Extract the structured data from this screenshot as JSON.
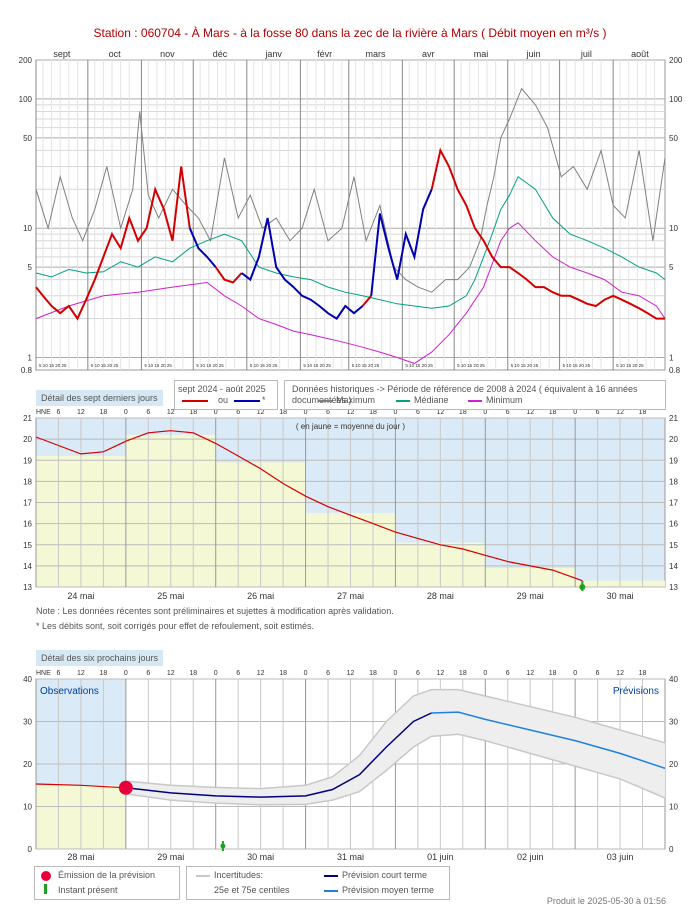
{
  "title": "Station : 060704      -  À Mars - à la fosse 80 dans la zec de la rivière à Mars   ( Débit moyen en m³/s )",
  "colors": {
    "observed_corrected": "#d40000",
    "observed_estimated": "#0000b0",
    "maximum": "#808080",
    "median": "#00a080",
    "minimum": "#d020d0",
    "daily_mean_fill": "#f4f8d4",
    "panel_bg": "#dbeaf7",
    "short_forecast": "#000080",
    "medium_forecast": "#2080e0",
    "uncertainty": "#c8c8c8"
  },
  "annual": {
    "panel_label": "",
    "legend_period": "sept 2024 - août 2025",
    "legend_or": "ou",
    "legend_star": "*",
    "legend_hist": "Données historiques -> Période de référence  de 2008 à 2024   ( équivalent à 16 années documentées )",
    "legend_max": "Maximum",
    "legend_median": "Médiane",
    "legend_min": "Minimum"
  },
  "week": {
    "panel_label": "Détail des sept derniers jours",
    "yaxis_label": "HNE",
    "mean_note": "( en jaune = moyenne du jour )"
  },
  "notes": {
    "line1": "Note : Les données récentes sont préliminaires et sujettes à modification après validation.",
    "line2": "* Les débits sont, soit corrigés pour effet de refoulement, soit estimés."
  },
  "forecast": {
    "panel_label": "Détail des six prochains jours",
    "yaxis_label": "HNE",
    "observations_label": "Observations",
    "previsions_label": "Prévisions",
    "legend_emission": "Émission de la prévision",
    "legend_instant": "Instant présent",
    "legend_uncert_1": "Incertitudes:",
    "legend_uncert_2": "25e et 75e centiles",
    "legend_short": "Prévision court terme",
    "legend_medium": "Prévision moyen terme"
  },
  "footer": "Produit le 2025-05-30 à 01:56",
  "chart_data": [
    {
      "type": "line",
      "title": "Station : 060704      -  À Mars - à la fosse 80 dans la zec de la rivière à Mars   ( Débit moyen en m³/s )",
      "yscale": "log",
      "ylim": [
        0.8,
        200
      ],
      "yticks": [
        0.8,
        1,
        5,
        10,
        50,
        100,
        200
      ],
      "months": [
        "sept",
        "oct",
        "nov",
        "déc",
        "janv",
        "févr",
        "mars",
        "avr",
        "mai",
        "juin",
        "juil",
        "août"
      ],
      "day_ticks": "5 10 15 20 25",
      "x_unit": "day of hydrological year (1 = 1 sept)",
      "series": [
        {
          "name": "Maximum",
          "x": [
            1,
            8,
            15,
            22,
            28,
            35,
            42,
            50,
            57,
            61,
            66,
            72,
            80,
            88,
            95,
            102,
            110,
            118,
            125,
            132,
            140,
            148,
            155,
            162,
            170,
            178,
            185,
            192,
            200,
            208,
            215,
            222,
            230,
            238,
            245,
            252,
            258,
            262,
            266,
            270,
            275,
            282,
            290,
            297,
            305,
            312,
            320,
            328,
            335,
            342,
            350,
            358,
            365
          ],
          "y": [
            20,
            10,
            25,
            12,
            8,
            14,
            30,
            10,
            20,
            80,
            18,
            12,
            20,
            15,
            12,
            8,
            35,
            12,
            18,
            10,
            12,
            8,
            10,
            20,
            8,
            10,
            25,
            8,
            15,
            5,
            4,
            3.5,
            3.2,
            4,
            4,
            5,
            8,
            15,
            25,
            50,
            70,
            120,
            90,
            60,
            25,
            30,
            20,
            40,
            15,
            12,
            40,
            8,
            35
          ]
        },
        {
          "name": "Médiane",
          "x": [
            1,
            10,
            20,
            30,
            40,
            50,
            60,
            70,
            80,
            90,
            100,
            110,
            120,
            130,
            140,
            150,
            160,
            170,
            180,
            190,
            200,
            210,
            220,
            230,
            240,
            250,
            255,
            260,
            265,
            270,
            275,
            280,
            290,
            300,
            310,
            320,
            330,
            340,
            350,
            360,
            365
          ],
          "y": [
            4.5,
            4.2,
            4.8,
            4.5,
            4.6,
            5.5,
            5,
            6,
            5.5,
            7,
            8,
            9,
            8,
            5,
            4.5,
            4.2,
            4,
            3.5,
            3.2,
            3,
            2.8,
            2.6,
            2.5,
            2.4,
            2.5,
            3,
            4,
            6,
            9,
            14,
            18,
            25,
            20,
            12,
            9,
            8,
            7,
            6,
            5,
            4.5,
            4
          ]
        },
        {
          "name": "Minimum",
          "x": [
            1,
            20,
            40,
            60,
            80,
            100,
            110,
            120,
            130,
            140,
            150,
            160,
            170,
            180,
            190,
            200,
            210,
            220,
            230,
            240,
            250,
            260,
            270,
            275,
            280,
            290,
            300,
            310,
            320,
            330,
            340,
            350,
            360,
            365
          ],
          "y": [
            2,
            2.5,
            3,
            3.2,
            3.5,
            3.8,
            3,
            2.5,
            2,
            1.8,
            1.6,
            1.5,
            1.4,
            1.3,
            1.2,
            1.1,
            1,
            0.9,
            1.1,
            1.5,
            2.2,
            3.5,
            8,
            10,
            11,
            8,
            6,
            5,
            4.5,
            4,
            3.2,
            3,
            2.5,
            2
          ]
        },
        {
          "name": "sept 2024 - août 2025",
          "x": [
            1,
            5,
            10,
            15,
            20,
            25,
            30,
            35,
            40,
            45,
            50,
            55,
            60,
            65,
            70,
            75,
            80,
            85,
            90,
            95,
            100,
            105,
            110,
            115,
            120,
            125,
            130,
            135,
            140,
            145,
            150,
            155,
            160,
            165,
            170,
            175,
            180,
            185,
            190,
            195,
            200,
            205,
            210,
            215,
            220,
            225,
            230,
            235,
            240,
            245,
            250,
            255,
            260,
            265,
            270,
            275,
            280,
            285,
            290,
            295,
            300,
            305,
            310,
            315,
            320,
            325,
            330,
            335,
            340,
            345,
            350,
            355,
            360,
            365
          ],
          "y": [
            3.5,
            3,
            2.5,
            2.2,
            2.5,
            2,
            2.8,
            4,
            6,
            9,
            7,
            12,
            8,
            10,
            20,
            14,
            8,
            30,
            10,
            7,
            6,
            5,
            4,
            3.8,
            4.5,
            4,
            6,
            12,
            5,
            4,
            3.5,
            3,
            2.8,
            2.5,
            2.2,
            2,
            2.5,
            2.2,
            2.5,
            3,
            13,
            7,
            4,
            9,
            6,
            14,
            20,
            40,
            30,
            20,
            15,
            10,
            8,
            6,
            5,
            5,
            4.5,
            4,
            3.5,
            3.5,
            3.2,
            3,
            3,
            2.8,
            2.6,
            2.5,
            2.8,
            3,
            2.8,
            2.6,
            2.4,
            2.2,
            2,
            2
          ]
        }
      ]
    },
    {
      "type": "line",
      "title": "Détail des sept derniers jours",
      "ylim": [
        13,
        21
      ],
      "yticks": [
        13,
        14,
        15,
        16,
        17,
        18,
        19,
        20,
        21
      ],
      "hour_ticks": [
        "6",
        "12",
        "18",
        "0"
      ],
      "categories": [
        "24 mai",
        "25 mai",
        "26 mai",
        "27 mai",
        "28 mai",
        "29 mai",
        "30 mai"
      ],
      "daily_mean": [
        19.2,
        20.2,
        18.9,
        16.5,
        15.1,
        13.9,
        13.3
      ],
      "series": [
        {
          "name": "",
          "x": [
            0,
            0.25,
            0.5,
            0.75,
            1.0,
            1.25,
            1.5,
            1.75,
            2.0,
            2.25,
            2.5,
            2.75,
            3.0,
            3.25,
            3.5,
            3.75,
            4.0,
            4.25,
            4.5,
            4.75,
            5.0,
            5.25,
            5.5,
            5.75,
            6.08
          ],
          "y": [
            20.1,
            19.7,
            19.3,
            19.4,
            19.9,
            20.3,
            20.4,
            20.3,
            19.8,
            19.2,
            18.6,
            17.9,
            17.3,
            16.8,
            16.4,
            16.0,
            15.6,
            15.3,
            15.0,
            14.8,
            14.5,
            14.2,
            14.0,
            13.8,
            13.3
          ]
        }
      ]
    },
    {
      "type": "line",
      "title": "Détail des six prochains jours",
      "ylim": [
        0,
        40
      ],
      "yticks": [
        0,
        10,
        20,
        30,
        40
      ],
      "hour_ticks": [
        "6",
        "12",
        "18",
        "0"
      ],
      "categories": [
        "28 mai",
        "29 mai",
        "30 mai",
        "31 mai",
        "01 juin",
        "02 juin",
        "03 juin"
      ],
      "series": [
        {
          "name": "Observations",
          "x": [
            0,
            0.5,
            1.0
          ],
          "y": [
            15.3,
            15.0,
            14.4
          ]
        },
        {
          "name": "Prévision court terme",
          "x": [
            1.0,
            1.5,
            2.0,
            2.5,
            3.0,
            3.3,
            3.6,
            3.9,
            4.2,
            4.4
          ],
          "y": [
            14.4,
            13.2,
            12.5,
            12.2,
            12.5,
            14.0,
            17.5,
            24.0,
            30.0,
            32.0
          ]
        },
        {
          "name": "Prévision moyen terme",
          "x": [
            4.4,
            4.7,
            5.0,
            5.5,
            6.0,
            6.5,
            7.0
          ],
          "y": [
            32.0,
            32.2,
            30.5,
            28.0,
            25.5,
            22.5,
            19.0
          ]
        },
        {
          "name": "75e centile",
          "x": [
            1.0,
            1.5,
            2.0,
            2.5,
            3.0,
            3.3,
            3.6,
            3.9,
            4.2,
            4.4,
            4.7,
            5.0,
            5.5,
            6.0,
            6.5,
            7.0
          ],
          "y": [
            16,
            15,
            14.5,
            14.2,
            15,
            17,
            22,
            30,
            36,
            37.5,
            37.5,
            36,
            33.5,
            31,
            28,
            25
          ]
        },
        {
          "name": "25e centile",
          "x": [
            1.0,
            1.5,
            2.0,
            2.5,
            3.0,
            3.3,
            3.6,
            3.9,
            4.2,
            4.4,
            4.7,
            5.0,
            5.5,
            6.0,
            6.5,
            7.0
          ],
          "y": [
            13,
            11.5,
            10.8,
            10.4,
            10.5,
            11.5,
            13.5,
            18.5,
            24,
            26.5,
            27,
            25.5,
            22.5,
            19.5,
            16.5,
            12
          ]
        }
      ],
      "emission_point": {
        "x": 1.0,
        "y": 14.4
      },
      "present_instant": {
        "x": 2.08
      }
    }
  ]
}
